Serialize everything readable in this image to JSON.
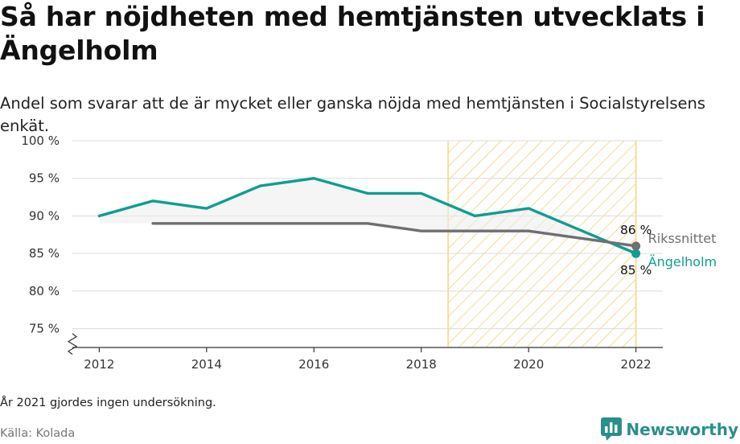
{
  "title": "Så har nöjdheten med hemtjänsten utvecklats i Ängelholm",
  "subtitle": "Andel som svarar att de är mycket eller ganska nöjda med hemtjänsten i Socialstyrelsens enkät.",
  "footnote": "År 2021 gjordes ingen undersökning.",
  "source": "Källa: Kolada",
  "brand": {
    "name": "Newsworthy",
    "color": "#2a8f8a"
  },
  "chart_data": {
    "type": "line",
    "xlim": [
      2011.5,
      2022.5
    ],
    "ylim": [
      72.5,
      100
    ],
    "x_ticks": [
      2012,
      2014,
      2016,
      2018,
      2020,
      2022
    ],
    "x_tick_labels": [
      "2012",
      "2014",
      "2016",
      "2018",
      "2020",
      "2022"
    ],
    "y_ticks": [
      75,
      80,
      85,
      90,
      95,
      100
    ],
    "y_tick_labels": [
      "75 %",
      "80 %",
      "85 %",
      "90 %",
      "95 %",
      "100 %"
    ],
    "grid": true,
    "highlight_range": [
      2018.5,
      2022
    ],
    "series": [
      {
        "name": "Ängelholm",
        "color": "#0e9e92",
        "x": [
          2012,
          2013,
          2014,
          2015,
          2016,
          2017,
          2018,
          2019,
          2020,
          2022
        ],
        "values": [
          90,
          92,
          91,
          94,
          95,
          93,
          93,
          90,
          91,
          85
        ],
        "end_label": "85 %"
      },
      {
        "name": "Rikssnittet",
        "color": "#6f6e73",
        "x": [
          2013,
          2014,
          2015,
          2016,
          2017,
          2018,
          2019,
          2020,
          2022
        ],
        "values": [
          89,
          89,
          89,
          89,
          89,
          88,
          88,
          88,
          86
        ],
        "end_label": "86 %"
      }
    ]
  }
}
